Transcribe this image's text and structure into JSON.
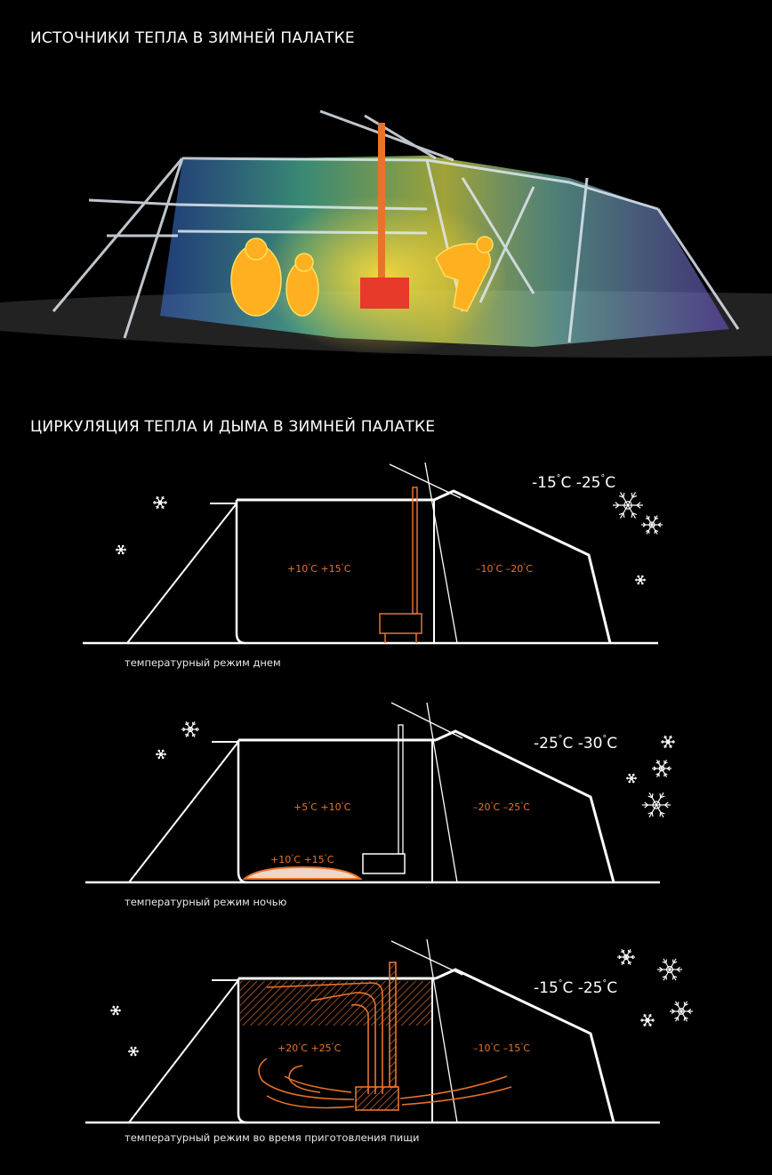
{
  "titles": {
    "sources": "ИСТОЧНИКИ ТЕПЛА В ЗИМНЕЙ ПАЛАТКЕ",
    "circulation": "ЦИРКУЛЯЦИЯ ТЕПЛА И ДЫМА В ЗИМНЕЙ ПАЛАТКЕ"
  },
  "colors": {
    "warm": "#e8742a",
    "line": "#ffffff",
    "snow": "#ffffff"
  },
  "diagrams": [
    {
      "outside": {
        "a": "-15",
        "b": "-25",
        "unit": "C"
      },
      "inside_main": {
        "a": "+10",
        "b": "+15",
        "unit": "C"
      },
      "inside_vestibule": {
        "a": "–10",
        "b": "–20",
        "unit": "C"
      },
      "caption": "температурный режим днем"
    },
    {
      "outside": {
        "a": "-25",
        "b": "-30",
        "unit": "C"
      },
      "inside_main": {
        "a": "+5",
        "b": "+10",
        "unit": "C"
      },
      "inside_floor": {
        "a": "+10",
        "b": "+15",
        "unit": "C"
      },
      "inside_vestibule": {
        "a": "–20",
        "b": "–25",
        "unit": "C"
      },
      "caption": "температурный режим ночью"
    },
    {
      "outside": {
        "a": "-15",
        "b": "-25",
        "unit": "C"
      },
      "inside_main": {
        "a": "+20",
        "b": "+25",
        "unit": "C"
      },
      "inside_vestibule": {
        "a": "–10",
        "b": "–15",
        "unit": "C"
      },
      "caption": "температурный режим во время приготовления пищи"
    }
  ]
}
